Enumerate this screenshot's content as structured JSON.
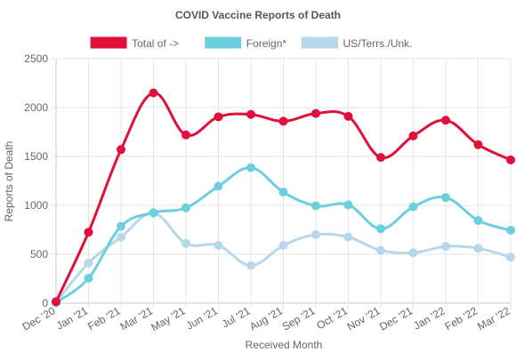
{
  "chart_data": {
    "type": "line",
    "title": "COVID Vaccine Reports of Death",
    "xlabel": "Received Month",
    "ylabel": "Reports of Death",
    "ylim": [
      0,
      2500
    ],
    "yticks": [
      "0",
      "500",
      "1000",
      "1500",
      "2000",
      "2500"
    ],
    "grid": true,
    "legend_position": "top",
    "categories": [
      "Dec '20",
      "Jan '21",
      "Feb '21",
      "Mar '21",
      "May '21",
      "Jun '21",
      "Jul '21",
      "Aug '21",
      "Sep '21",
      "Oct '21",
      "Nov '21",
      "Dec '21",
      "Jan '22",
      "Feb '22",
      "Mar '22"
    ],
    "series": [
      {
        "name": "Total of ->",
        "color": "#e0103a",
        "values": [
          15,
          725,
          1570,
          2150,
          1720,
          1905,
          1930,
          1860,
          1940,
          1910,
          1490,
          1710,
          1870,
          1620,
          1465
        ]
      },
      {
        "name": "Foreign*",
        "color": "#6ccfdd",
        "values": [
          5,
          255,
          785,
          925,
          975,
          1195,
          1385,
          1135,
          995,
          1005,
          760,
          985,
          1080,
          845,
          745
        ]
      },
      {
        "name": "US/Terrs./Unk.",
        "color": "#b7d7ea",
        "values": [
          10,
          410,
          675,
          920,
          610,
          590,
          385,
          590,
          700,
          675,
          540,
          515,
          580,
          560,
          470
        ]
      }
    ]
  }
}
